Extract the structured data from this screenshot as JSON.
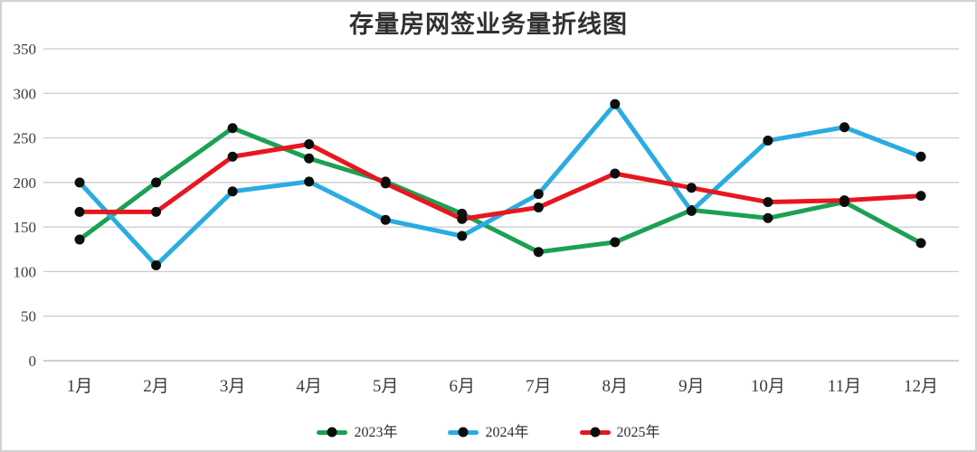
{
  "chart_data": {
    "type": "line",
    "title": "存量房网签业务量折线图",
    "categories": [
      "1月",
      "2月",
      "3月",
      "4月",
      "5月",
      "6月",
      "7月",
      "8月",
      "9月",
      "10月",
      "11月",
      "12月"
    ],
    "series": [
      {
        "name": "2023年",
        "color": "#1ba153",
        "values": [
          136,
          200,
          261,
          227,
          201,
          165,
          122,
          133,
          169,
          160,
          178,
          132
        ]
      },
      {
        "name": "2024年",
        "color": "#2aace2",
        "values": [
          200,
          107,
          190,
          201,
          158,
          140,
          187,
          288,
          168,
          247,
          262,
          229
        ]
      },
      {
        "name": "2025年",
        "color": "#e8161e",
        "values": [
          167,
          167,
          229,
          243,
          199,
          159,
          172,
          210,
          194,
          178,
          180,
          185
        ]
      }
    ],
    "ylim": [
      0,
      350
    ],
    "yticks": [
      0,
      50,
      100,
      150,
      200,
      250,
      300,
      350
    ],
    "xlabel": "",
    "ylabel": "",
    "grid": true,
    "legend_position": "bottom",
    "marker_color": "#0d0d0d",
    "grid_color": "#c9c9c9",
    "zero_line_color": "#b0b0b0"
  }
}
